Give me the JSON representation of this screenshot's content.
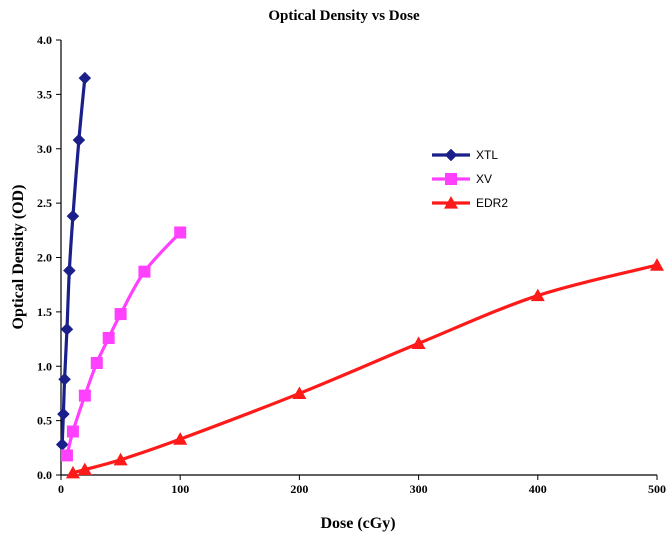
{
  "chart_data": {
    "type": "line",
    "title": "Optical Density vs Dose",
    "xlabel": "Dose (cGy)",
    "ylabel": "Optical Density (OD)",
    "xlim": [
      0,
      500
    ],
    "ylim": [
      0,
      4.0
    ],
    "x_ticks": [
      0,
      100,
      200,
      300,
      400,
      500
    ],
    "y_ticks": [
      "0.0",
      "0.5",
      "1.0",
      "1.5",
      "2.0",
      "2.5",
      "3.0",
      "3.5",
      "4.0"
    ],
    "grid": false,
    "legend_position": "right",
    "series": [
      {
        "name": "XTL",
        "color": "#1a1f8a",
        "marker": "diamond",
        "points": [
          [
            1,
            0.28
          ],
          [
            2,
            0.56
          ],
          [
            3,
            0.88
          ],
          [
            5,
            1.34
          ],
          [
            7,
            1.88
          ],
          [
            10,
            2.38
          ],
          [
            15,
            3.08
          ],
          [
            20,
            3.65
          ]
        ]
      },
      {
        "name": "XV",
        "color": "#ff40ff",
        "marker": "square",
        "points": [
          [
            5,
            0.18
          ],
          [
            10,
            0.4
          ],
          [
            20,
            0.73
          ],
          [
            30,
            1.03
          ],
          [
            40,
            1.26
          ],
          [
            50,
            1.48
          ],
          [
            70,
            1.87
          ],
          [
            100,
            2.23
          ]
        ]
      },
      {
        "name": "EDR2",
        "color": "#ff1a1a",
        "marker": "triangle",
        "points": [
          [
            10,
            0.02
          ],
          [
            20,
            0.05
          ],
          [
            50,
            0.14
          ],
          [
            100,
            0.33
          ],
          [
            200,
            0.75
          ],
          [
            300,
            1.21
          ],
          [
            400,
            1.65
          ],
          [
            500,
            1.93
          ]
        ]
      }
    ]
  }
}
